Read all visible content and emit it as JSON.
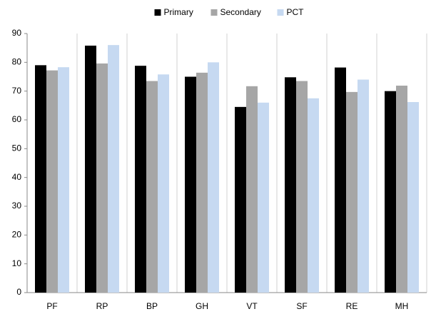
{
  "chart_data": {
    "type": "bar",
    "categories": [
      "PF",
      "RP",
      "BP",
      "GH",
      "VT",
      "SF",
      "RE",
      "MH"
    ],
    "series": [
      {
        "name": "Primary",
        "color": "#000000",
        "values": [
          79,
          85.8,
          78.8,
          75,
          64.5,
          74.8,
          78.2,
          70
        ]
      },
      {
        "name": "Secondary",
        "color": "#a6a6a6",
        "values": [
          77.2,
          79.6,
          73.5,
          76.4,
          71.7,
          73.5,
          69.7,
          71.9
        ]
      },
      {
        "name": "PCT",
        "color": "#c6d9f1",
        "values": [
          78.3,
          86,
          75.8,
          80,
          66,
          67.5,
          74,
          66.2
        ]
      }
    ],
    "ylim": [
      0,
      90
    ],
    "yticks": [
      0,
      10,
      20,
      30,
      40,
      50,
      60,
      70,
      80,
      90
    ],
    "legend": "top",
    "grid": "vertical"
  }
}
